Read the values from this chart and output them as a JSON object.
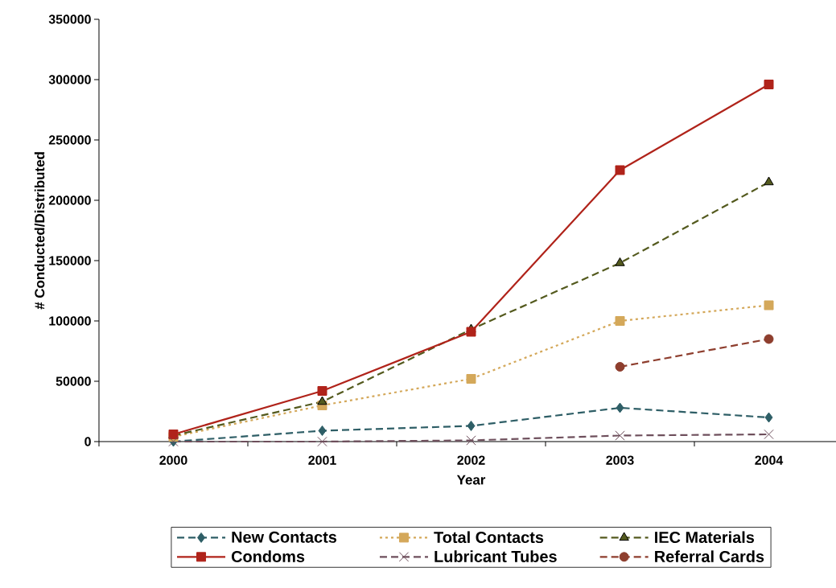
{
  "chart_data": {
    "type": "line",
    "xlabel": "Year",
    "ylabel": "# Conducted/Distributed",
    "categories": [
      "2000",
      "2001",
      "2002",
      "2003",
      "2004"
    ],
    "ylim": [
      0,
      350000
    ],
    "yticks": [
      0,
      50000,
      100000,
      150000,
      200000,
      250000,
      300000,
      350000
    ],
    "grid": false,
    "legend": "bottom",
    "series": [
      {
        "name": "New Contacts",
        "color": "#2e5e66",
        "marker": "diamond",
        "line_style": "dashed",
        "values": [
          0,
          9000,
          13000,
          28000,
          20000
        ]
      },
      {
        "name": "Total Contacts",
        "color": "#d4a85a",
        "marker": "square",
        "line_style": "dotted",
        "values": [
          4000,
          30000,
          52000,
          100000,
          113000
        ]
      },
      {
        "name": "IEC Materials",
        "color": "#545a1e",
        "marker": "triangle",
        "line_style": "dashed",
        "values": [
          5000,
          33000,
          93000,
          148000,
          215000
        ]
      },
      {
        "name": "Condoms",
        "color": "#b0231a",
        "marker": "square",
        "line_style": "solid",
        "values": [
          6000,
          42000,
          91000,
          225000,
          296000
        ]
      },
      {
        "name": "Lubricant Tubes",
        "color": "#6e4f5c",
        "marker": "cross",
        "line_style": "dashed",
        "values": [
          0,
          0,
          1000,
          5000,
          6000
        ]
      },
      {
        "name": "Referral Cards",
        "color": "#8e3e2e",
        "marker": "circle",
        "line_style": "dashed",
        "values": [
          null,
          null,
          null,
          62000,
          85000
        ]
      }
    ]
  }
}
